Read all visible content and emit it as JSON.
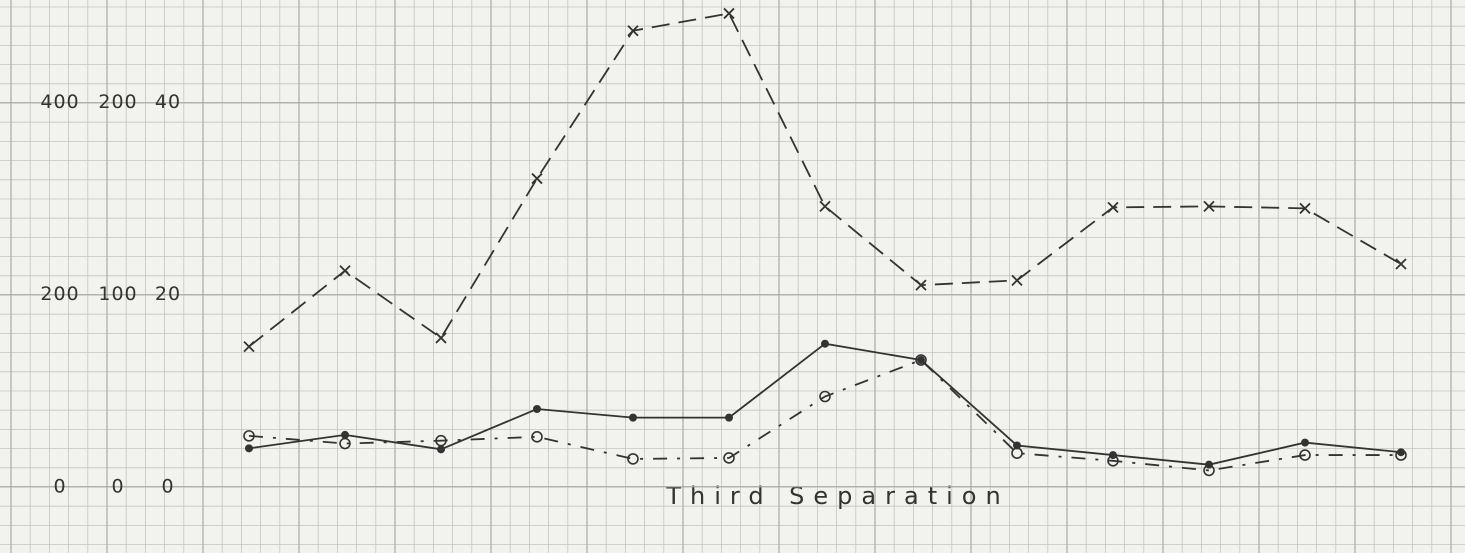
{
  "chart_data": {
    "type": "line",
    "annotation": "Third Separation",
    "categories": [
      null,
      null,
      null,
      null,
      null,
      null,
      null,
      null,
      null,
      null,
      null,
      null,
      null
    ],
    "ylim": [
      -69,
      507
    ],
    "yticks": [
      0,
      200,
      400
    ],
    "y2lim": [
      -34.5,
      253.5
    ],
    "y2ticks": [
      0,
      100,
      200
    ],
    "y3lim": [
      -6.9,
      50.7
    ],
    "y3ticks": [
      0,
      20,
      40
    ],
    "grid": true,
    "series": [
      {
        "marker": "x",
        "dash": "dashed",
        "color": "#333333",
        "values": [
          146,
          225,
          155,
          321,
          475,
          493,
          292,
          210,
          215,
          291,
          292,
          290,
          232
        ]
      },
      {
        "marker": "dot",
        "dash": "solid",
        "color": "#333333",
        "values": [
          40,
          54,
          39,
          81,
          72,
          72,
          149,
          132,
          43,
          33,
          23,
          46,
          36
        ]
      },
      {
        "marker": "circle",
        "dash": "dashdot",
        "color": "#333333",
        "values": [
          53,
          45,
          48,
          52,
          29,
          30,
          94,
          132,
          35,
          27,
          17,
          33,
          33
        ]
      }
    ]
  }
}
